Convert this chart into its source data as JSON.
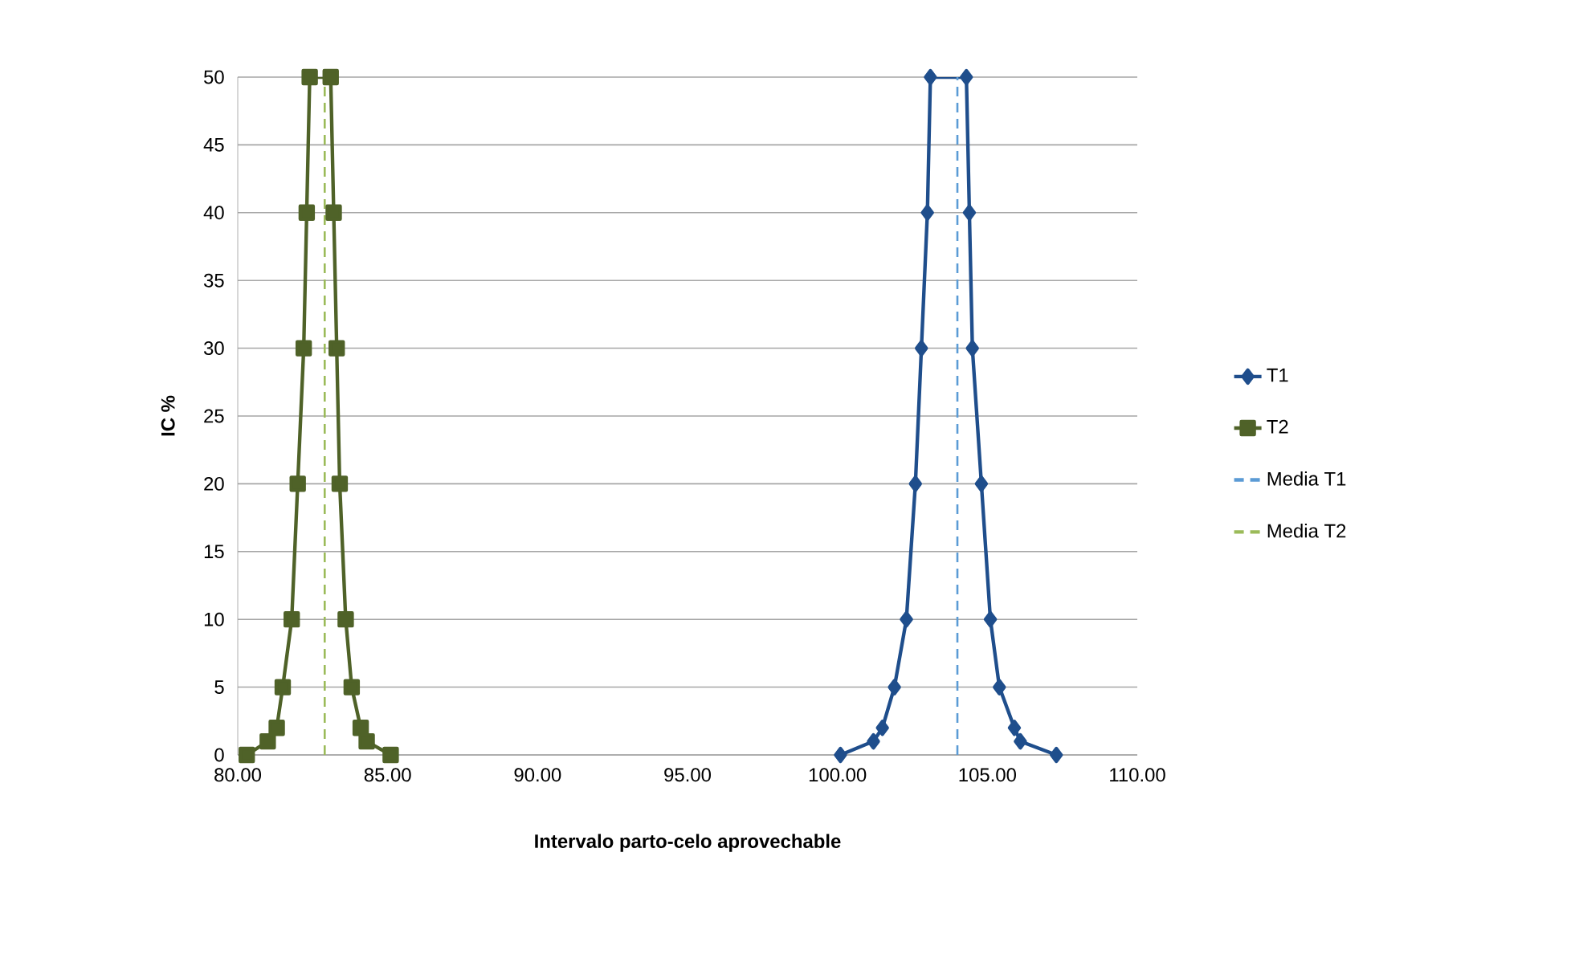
{
  "chart_data": {
    "type": "line",
    "xlabel": "Intervalo parto-celo aprovechable",
    "ylabel": "IC %",
    "xlim": [
      80,
      110
    ],
    "ylim": [
      0,
      50
    ],
    "xticks": [
      {
        "value": 80,
        "label": "80.00"
      },
      {
        "value": 85,
        "label": "85.00"
      },
      {
        "value": 90,
        "label": "90.00"
      },
      {
        "value": 95,
        "label": "95.00"
      },
      {
        "value": 100,
        "label": "100.00"
      },
      {
        "value": 105,
        "label": "105.00"
      },
      {
        "value": 110,
        "label": "110.00"
      }
    ],
    "yticks": [
      0,
      5,
      10,
      15,
      20,
      25,
      30,
      35,
      40,
      45,
      50
    ],
    "grid": "y",
    "legend": "right",
    "series": [
      {
        "name": "T1",
        "color": "#1f4e8c",
        "marker": "diamond",
        "line_style": "solid",
        "x": [
          100.1,
          101.2,
          101.5,
          101.9,
          102.3,
          102.6,
          102.8,
          103.0,
          103.1,
          104.3,
          104.4,
          104.5,
          104.8,
          105.1,
          105.4,
          105.9,
          106.1,
          107.3
        ],
        "values": [
          0,
          1,
          2,
          5,
          10,
          20,
          30,
          40,
          50,
          50,
          40,
          30,
          20,
          10,
          5,
          2,
          1,
          0
        ]
      },
      {
        "name": "T2",
        "color": "#4f6228",
        "marker": "square",
        "line_style": "solid",
        "x": [
          80.3,
          81.0,
          81.3,
          81.5,
          81.8,
          82.0,
          82.2,
          82.3,
          82.4,
          83.1,
          83.2,
          83.3,
          83.4,
          83.6,
          83.8,
          84.1,
          84.3,
          85.1
        ],
        "values": [
          0,
          1,
          2,
          5,
          10,
          20,
          30,
          40,
          50,
          50,
          40,
          30,
          20,
          10,
          5,
          2,
          1,
          0
        ]
      },
      {
        "name": "Media T1",
        "color": "#5b9bd5",
        "marker": "none",
        "line_style": "dashed",
        "x": [
          104.0,
          104.0
        ],
        "values": [
          0,
          50
        ]
      },
      {
        "name": "Media T2",
        "color": "#9bbb59",
        "marker": "none",
        "line_style": "dashed",
        "x": [
          82.9,
          82.9
        ],
        "values": [
          0,
          50
        ]
      }
    ]
  }
}
